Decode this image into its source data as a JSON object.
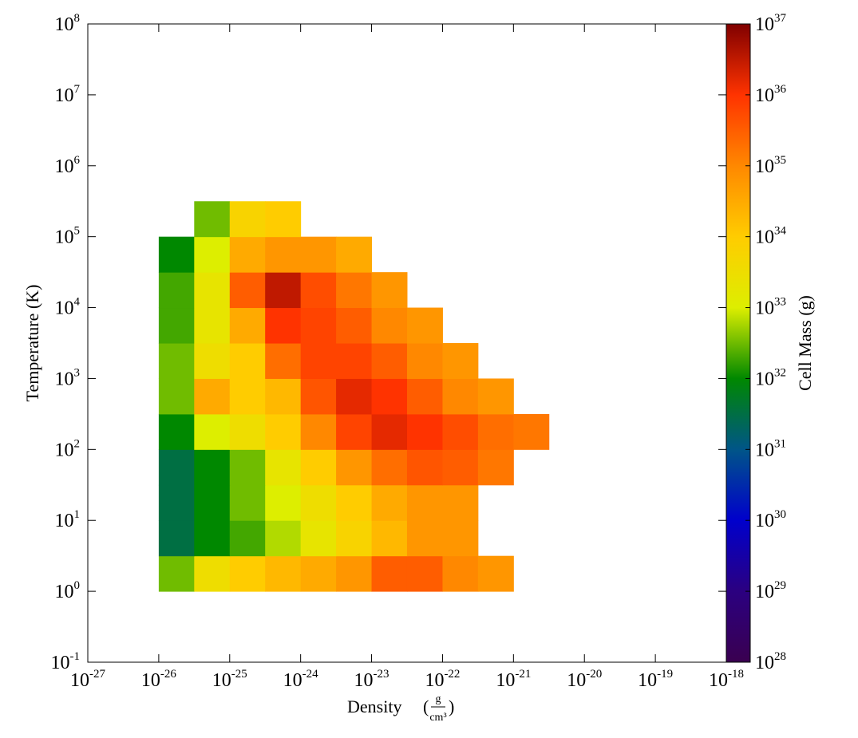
{
  "chart_data": {
    "type": "heatmap",
    "xlabel": "Density",
    "xlabel_unit_numerator": "g",
    "xlabel_unit_denominator": "cm³",
    "ylabel": "Temperature  (K)",
    "colorbar_label": "Cell Mass  (g)",
    "xlog": true,
    "ylog": true,
    "zlog": true,
    "xlim": [
      1e-27,
      1e-18
    ],
    "ylim": [
      0.1,
      100000000.0
    ],
    "zlim": [
      1e+28,
      1e+37
    ],
    "xticks": [
      {
        "value": 1e-27,
        "label": "10",
        "exponent": "-27"
      },
      {
        "value": 1e-26,
        "label": "10",
        "exponent": "-26"
      },
      {
        "value": 1e-25,
        "label": "10",
        "exponent": "-25"
      },
      {
        "value": 1e-24,
        "label": "10",
        "exponent": "-24"
      },
      {
        "value": 1e-23,
        "label": "10",
        "exponent": "-23"
      },
      {
        "value": 1e-22,
        "label": "10",
        "exponent": "-22"
      },
      {
        "value": 1e-21,
        "label": "10",
        "exponent": "-21"
      },
      {
        "value": 1e-20,
        "label": "10",
        "exponent": "-20"
      },
      {
        "value": 1e-19,
        "label": "10",
        "exponent": "-19"
      },
      {
        "value": 1e-18,
        "label": "10",
        "exponent": "-18"
      }
    ],
    "yticks": [
      {
        "value": 0.1,
        "label": "10",
        "exponent": "-1"
      },
      {
        "value": 1,
        "label": "10",
        "exponent": "0"
      },
      {
        "value": 10,
        "label": "10",
        "exponent": "1"
      },
      {
        "value": 100,
        "label": "10",
        "exponent": "2"
      },
      {
        "value": 1000,
        "label": "10",
        "exponent": "3"
      },
      {
        "value": 10000,
        "label": "10",
        "exponent": "4"
      },
      {
        "value": 100000,
        "label": "10",
        "exponent": "5"
      },
      {
        "value": 1000000,
        "label": "10",
        "exponent": "6"
      },
      {
        "value": 10000000,
        "label": "10",
        "exponent": "7"
      },
      {
        "value": 100000000,
        "label": "10",
        "exponent": "8"
      }
    ],
    "zticks": [
      {
        "value": 1e+28,
        "label": "10",
        "exponent": "28"
      },
      {
        "value": 1e+29,
        "label": "10",
        "exponent": "29"
      },
      {
        "value": 1e+30,
        "label": "10",
        "exponent": "30"
      },
      {
        "value": 1e+31,
        "label": "10",
        "exponent": "31"
      },
      {
        "value": 1e+32,
        "label": "10",
        "exponent": "32"
      },
      {
        "value": 1e+33,
        "label": "10",
        "exponent": "33"
      },
      {
        "value": 1e+34,
        "label": "10",
        "exponent": "34"
      },
      {
        "value": 1e+35,
        "label": "10",
        "exponent": "35"
      },
      {
        "value": 1e+36,
        "label": "10",
        "exponent": "36"
      },
      {
        "value": 1e+37,
        "label": "10",
        "exponent": "37"
      }
    ],
    "colormap": [
      "#3a0050",
      "#2b0080",
      "#0000cc",
      "#005588",
      "#008800",
      "#ddee00",
      "#ffcc00",
      "#ff8800",
      "#ff3300",
      "#800000"
    ],
    "xbins": [
      1e-26,
      3.16e-26,
      1e-25,
      3.16e-25,
      1e-24,
      3.16e-24,
      1e-23,
      3.16e-23,
      1e-22,
      3.16e-22,
      1e-21,
      3.16e-21
    ],
    "ybins": [
      1,
      3.16,
      10,
      31.6,
      100,
      316,
      1000,
      3160,
      10000,
      31600,
      100000,
      316000
    ],
    "z": [
      [
        3.2e+32,
        3.2e+33,
        1e+34,
        2e+34,
        3.2e+34,
        6.3e+34,
        3.2e+35,
        3.2e+35,
        1e+35,
        6.3e+34,
        null
      ],
      [
        3.2e+31,
        1e+32,
        2e+32,
        6.3e+32,
        2e+33,
        6.3e+33,
        2e+34,
        6.3e+34,
        6.3e+34,
        null,
        null
      ],
      [
        3.2e+31,
        1e+32,
        3.2e+32,
        1e+33,
        3.2e+33,
        1e+34,
        3.2e+34,
        6.3e+34,
        6.3e+34,
        null,
        null
      ],
      [
        3.2e+31,
        1e+32,
        3.2e+32,
        2e+33,
        1e+34,
        6.3e+34,
        2e+35,
        4e+35,
        3.2e+35,
        1.6e+35,
        null
      ],
      [
        1e+32,
        1e+33,
        3.2e+33,
        1e+34,
        1e+35,
        6.3e+35,
        1.6e+36,
        1e+36,
        5e+35,
        2e+35,
        1.6e+35
      ],
      [
        3.2e+32,
        3.2e+34,
        1e+34,
        2e+34,
        4e+35,
        1.6e+36,
        1e+36,
        3.2e+35,
        1e+35,
        6.3e+34,
        null
      ],
      [
        3.2e+32,
        3.2e+33,
        1e+34,
        2e+35,
        6.3e+35,
        6.3e+35,
        3.2e+35,
        1e+35,
        6.3e+34,
        null,
        null
      ],
      [
        2e+32,
        2e+33,
        3.2e+34,
        1e+36,
        6.3e+35,
        3.2e+35,
        1e+35,
        6.3e+34,
        null,
        null,
        null
      ],
      [
        2e+32,
        2e+33,
        3.2e+35,
        3.2e+36,
        5e+35,
        1.6e+35,
        6.3e+34,
        null,
        null,
        null,
        null
      ],
      [
        1e+32,
        1e+33,
        3.2e+34,
        6.3e+34,
        6.3e+34,
        3.2e+34,
        null,
        null,
        null,
        null,
        null
      ],
      [
        null,
        3.2e+32,
        6.3e+33,
        1e+34,
        null,
        null,
        null,
        null,
        null,
        null,
        null
      ]
    ]
  }
}
